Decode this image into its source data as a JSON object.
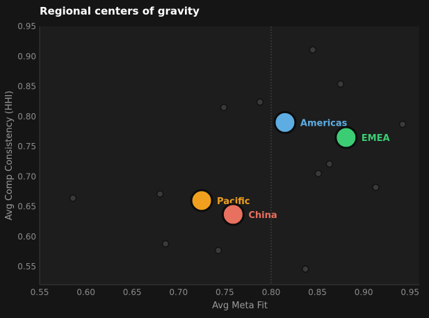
{
  "chart_data": {
    "type": "scatter",
    "title": "Regional centers of gravity",
    "xlabel": "Avg Meta Fit",
    "ylabel": "Avg Comp Consistency (HHI)",
    "xlim": [
      0.55,
      0.96
    ],
    "ylim": [
      0.52,
      0.95
    ],
    "xticks": [
      "0.55",
      "0.60",
      "0.65",
      "0.70",
      "0.75",
      "0.80",
      "0.85",
      "0.90",
      "0.95"
    ],
    "yticks": [
      "0.55",
      "0.60",
      "0.65",
      "0.70",
      "0.75",
      "0.80",
      "0.85",
      "0.90",
      "0.95"
    ],
    "reference_line_x": 0.8,
    "grid": false,
    "background_points": [
      {
        "x": 0.586,
        "y": 0.664
      },
      {
        "x": 0.68,
        "y": 0.671
      },
      {
        "x": 0.686,
        "y": 0.588
      },
      {
        "x": 0.743,
        "y": 0.577
      },
      {
        "x": 0.749,
        "y": 0.815
      },
      {
        "x": 0.788,
        "y": 0.824
      },
      {
        "x": 0.837,
        "y": 0.546
      },
      {
        "x": 0.845,
        "y": 0.911
      },
      {
        "x": 0.851,
        "y": 0.705
      },
      {
        "x": 0.863,
        "y": 0.721
      },
      {
        "x": 0.875,
        "y": 0.854
      },
      {
        "x": 0.913,
        "y": 0.682
      },
      {
        "x": 0.942,
        "y": 0.787
      }
    ],
    "series": [
      {
        "name": "Americas",
        "x": 0.815,
        "y": 0.79,
        "color": "#5dade2"
      },
      {
        "name": "EMEA",
        "x": 0.881,
        "y": 0.765,
        "color": "#3ccd74"
      },
      {
        "name": "Pacific",
        "x": 0.725,
        "y": 0.66,
        "color": "#f0a01e"
      },
      {
        "name": "China",
        "x": 0.759,
        "y": 0.637,
        "color": "#e8705f"
      }
    ],
    "background_point_color": "#3a3a3a",
    "plot_background": "#1d1d1d"
  }
}
